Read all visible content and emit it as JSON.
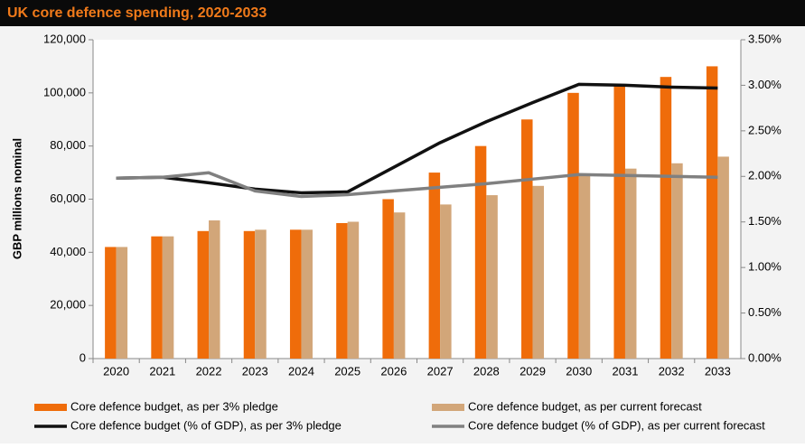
{
  "chart_data": {
    "type": "bar",
    "title": "UK core defence spending, 2020-2033",
    "y_label": "GBP millions nominal",
    "categories": [
      "2020",
      "2021",
      "2022",
      "2023",
      "2024",
      "2025",
      "2026",
      "2027",
      "2028",
      "2029",
      "2030",
      "2031",
      "2032",
      "2033"
    ],
    "ylim": [
      0,
      120000
    ],
    "yticks": [
      0,
      {
        "value": 20000,
        "label": "20,000"
      },
      {
        "value": 40000,
        "label": "40,000"
      },
      {
        "value": 60000,
        "label": "60,000"
      },
      {
        "value": 80000,
        "label": "80,000"
      },
      {
        "value": 100000,
        "label": "100,000"
      },
      {
        "value": 120000,
        "label": "120,000"
      }
    ],
    "y2lim": [
      0,
      3.5
    ],
    "y2ticks": [
      {
        "value": 0,
        "label": "0.00%"
      },
      {
        "value": 0.5,
        "label": "0.50%"
      },
      {
        "value": 1,
        "label": "1.00%"
      },
      {
        "value": 1.5,
        "label": "1.50%"
      },
      {
        "value": 2,
        "label": "2.00%"
      },
      {
        "value": 2.5,
        "label": "2.50%"
      },
      {
        "value": 3,
        "label": "3.00%"
      },
      {
        "value": 3.5,
        "label": "3.50%"
      }
    ],
    "series": [
      {
        "name": "Core defence budget, as per 3% pledge",
        "type": "bar",
        "color": "#ef6c0a",
        "values": [
          42000,
          46000,
          48000,
          48000,
          48500,
          51000,
          60000,
          70000,
          80000,
          90000,
          100000,
          103000,
          106000,
          110000
        ]
      },
      {
        "name": "Core defence budget, as per current forecast",
        "type": "bar",
        "color": "#d2a679",
        "values": [
          42000,
          46000,
          52000,
          48500,
          48500,
          51500,
          55000,
          58000,
          61500,
          65000,
          69000,
          71500,
          73500,
          76000
        ]
      },
      {
        "name": "Core defence budget (% of GDP), as per 3% pledge",
        "type": "line",
        "axis": "y2",
        "color": "#111111",
        "values": [
          1.98,
          1.99,
          1.93,
          1.86,
          1.82,
          1.83,
          2.1,
          2.37,
          2.6,
          2.81,
          3.01,
          3.0,
          2.98,
          2.97
        ]
      },
      {
        "name": "Core defence budget (% of GDP), as per current forecast",
        "type": "line",
        "axis": "y2",
        "color": "#808080",
        "values": [
          1.98,
          1.99,
          2.04,
          1.84,
          1.78,
          1.8,
          1.84,
          1.88,
          1.92,
          1.97,
          2.02,
          2.01,
          2.0,
          1.99
        ]
      }
    ]
  }
}
